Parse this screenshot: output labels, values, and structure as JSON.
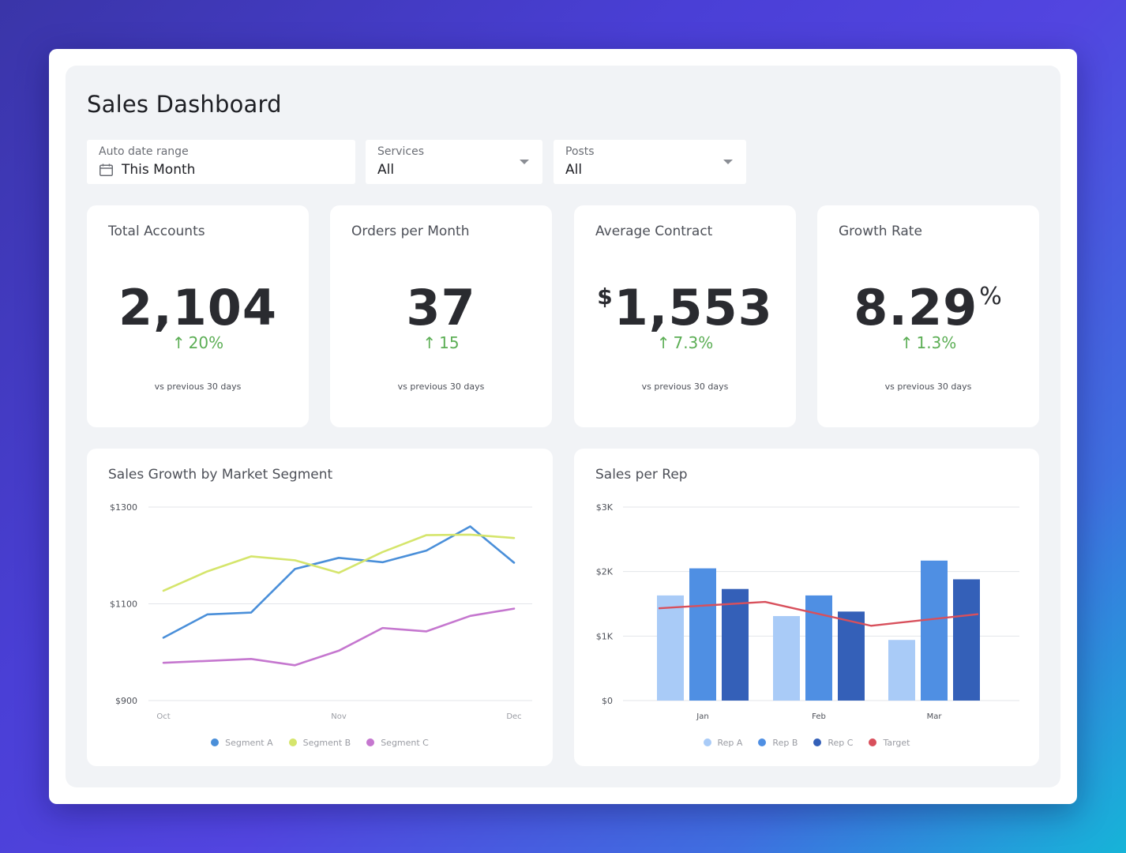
{
  "dashboard": {
    "title": "Sales Dashboard"
  },
  "filters": {
    "date": {
      "label": "Auto date range",
      "value": "This Month",
      "icon": "calendar-icon"
    },
    "services": {
      "label": "Services",
      "value": "All"
    },
    "posts": {
      "label": "Posts",
      "value": "All"
    }
  },
  "kpis": [
    {
      "label": "Total Accounts",
      "prefix": "",
      "value": "2,104",
      "suffix": "",
      "arrow": "↑",
      "delta": "20%",
      "footnote": "vs previous 30 days"
    },
    {
      "label": "Orders per Month",
      "prefix": "",
      "value": "37",
      "suffix": "",
      "arrow": "↑",
      "delta": "15",
      "footnote": "vs previous 30 days"
    },
    {
      "label": "Average Contract",
      "prefix": "$",
      "value": "1,553",
      "suffix": "",
      "arrow": "↑",
      "delta": "7.3%",
      "footnote": "vs previous 30 days"
    },
    {
      "label": "Growth Rate",
      "prefix": "",
      "value": "8.29",
      "suffix": "%",
      "arrow": "↑",
      "delta": "1.3%",
      "footnote": "vs previous 30 days"
    }
  ],
  "colors": {
    "delta_positive": "#5cae55",
    "segment_a": "#4a8fd9",
    "segment_b": "#d5e56c",
    "segment_c": "#c577cf",
    "rep_a": "#a9cbf7",
    "rep_b": "#4f8fe3",
    "rep_c": "#3460b8",
    "target": "#d8505c"
  },
  "chart_data": [
    {
      "type": "line",
      "title": "Sales Growth by Market Segment",
      "ylim": [
        900,
        1300
      ],
      "yticks": [
        "$1300",
        "$1100",
        "$900"
      ],
      "ytick_values": [
        1300,
        1100,
        900
      ],
      "xticks": [
        "Oct",
        "Nov",
        "Dec"
      ],
      "x_points": 9,
      "grid": true,
      "legend": "bottom",
      "series": [
        {
          "name": "Segment A",
          "color": "#4a8fd9",
          "values": [
            1030,
            1078,
            1082,
            1172,
            1195,
            1186,
            1210,
            1260,
            1185
          ]
        },
        {
          "name": "Segment B",
          "color": "#d5e56c",
          "values": [
            1127,
            1167,
            1198,
            1190,
            1164,
            1207,
            1242,
            1243,
            1236
          ]
        },
        {
          "name": "Segment C",
          "color": "#c577cf",
          "values": [
            978,
            982,
            986,
            973,
            1003,
            1050,
            1043,
            1075,
            1090
          ]
        }
      ]
    },
    {
      "type": "bar",
      "title": "Sales per Rep",
      "ylim": [
        0,
        3000
      ],
      "yticks": [
        "$3K",
        "$2K",
        "$1K",
        "$0"
      ],
      "ytick_values": [
        3000,
        2000,
        1000,
        0
      ],
      "categories": [
        "Jan",
        "Feb",
        "Mar"
      ],
      "grid": true,
      "legend": "bottom",
      "series": [
        {
          "name": "Rep A",
          "color": "#a9cbf7",
          "values": [
            1630,
            1310,
            940
          ]
        },
        {
          "name": "Rep B",
          "color": "#4f8fe3",
          "values": [
            2050,
            1630,
            2170
          ]
        },
        {
          "name": "Rep C",
          "color": "#3460b8",
          "values": [
            1730,
            1380,
            1880
          ]
        }
      ],
      "target": {
        "name": "Target",
        "color": "#d8505c",
        "values": [
          1430,
          1530,
          1160,
          1340
        ]
      }
    }
  ]
}
